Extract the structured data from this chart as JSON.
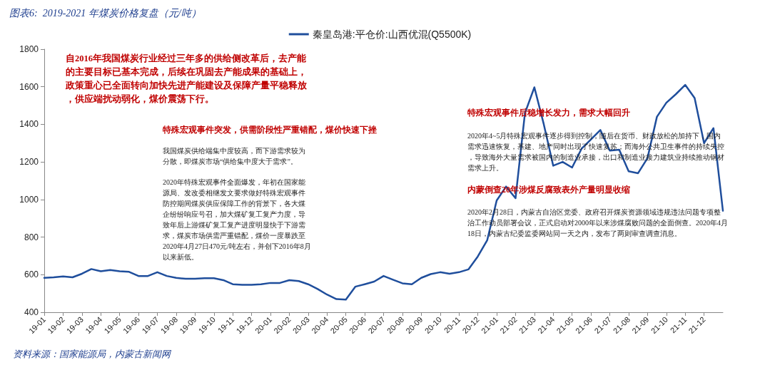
{
  "chart_data": {
    "type": "line",
    "title": "图表6:  2019-2021 年煤炭价格复盘（元/吨）",
    "categories": [
      "19-01",
      null,
      "19-02",
      null,
      "19-03",
      null,
      "19-04",
      null,
      "19-05",
      null,
      "19-06",
      null,
      "19-07",
      null,
      "19-08",
      null,
      "19-09",
      null,
      "19-10",
      null,
      "19-11",
      null,
      "19-12",
      null,
      "20-01",
      null,
      "20-02",
      null,
      "20-03",
      null,
      "20-04",
      null,
      "20-05",
      null,
      "20-06",
      null,
      "20-07",
      null,
      "20-08",
      null,
      "20-09",
      null,
      "20-10",
      null,
      "20-11",
      null,
      "20-12",
      null,
      "21-01",
      null,
      "21-02",
      null,
      "21-03",
      null,
      "21-04",
      null,
      "21-05",
      null,
      "21-06",
      null,
      "21-07",
      null,
      "21-08",
      null,
      "21-09",
      null,
      "21-10",
      null,
      "21-11",
      null,
      "21-12",
      null,
      null
    ],
    "series": [
      {
        "name": "秦皇岛港:平仓价:山西优混(Q5500K)",
        "color": "#1f4e9c",
        "values": [
          583,
          586,
          591,
          586,
          605,
          630,
          618,
          625,
          618,
          615,
          593,
          593,
          613,
          593,
          583,
          578,
          578,
          581,
          581,
          571,
          549,
          546,
          546,
          549,
          556,
          556,
          571,
          566,
          549,
          524,
          494,
          470,
          467,
          536,
          549,
          563,
          593,
          573,
          554,
          549,
          583,
          603,
          613,
          605,
          613,
          628,
          697,
          784,
          995,
          1069,
          1007,
          1460,
          1597,
          1400,
          1180,
          1200,
          1170,
          1270,
          1320,
          1370,
          1260,
          1265,
          1150,
          1140,
          1220,
          1440,
          1515,
          1560,
          1610,
          1540,
          1300,
          1380,
          940
        ]
      }
    ],
    "ylim": [
      400,
      1800
    ],
    "yticks": [
      400,
      600,
      800,
      1000,
      1200,
      1400,
      1600,
      1800
    ],
    "grid": false,
    "legend": "top",
    "marker": "none",
    "line_style": "solid",
    "annotations": [
      "自2016年我国煤炭行业经过三年多的供给侧改革后，去产能的主要目标已基本完成，后续在巩固去产能成果的基础上，政策重心已全面转向加快先进产能建设及保障产量平稳释放，供应端扰动弱化，煤价震荡下行。",
      "特殊宏观事件突发，供需阶段性严重错配，煤价快速下挫",
      "我国煤炭供给端集中度较高，而下游需求较为分散，即煤炭市场“供给集中度大于需求”。",
      "2020年特殊宏观事件全面爆发，年初在国家能源局、发改委相继发文要求做好特殊宏观事件防控期间煤炭供应保障工作的背景下，各大煤企纷纷响应号召，加大煤矿复工复产力度，导致年后上游煤矿复工复产进度明显快于下游需求，煤炭市场供需严重错配，煤价一度暴跌至2020年4月27日470元/吨左右，并创下2016年8月以来新低。",
      "特殊宏观事件后稳增长发力，需求大幅回升",
      "2020年4~5月特殊宏观事件逐步得到控制，随后在货币、财政放松的加持下，国内需求迅速恢复，基建、地产同时出现了快速复苏；而海外公共卫生事件的持续失控，导致海外大量需求被国内的制造业承接，出口和制造业接力建筑业持续推动钢材需求上升。",
      "内蒙倒查20年涉煤反腐致表外产量明显收缩",
      "2020年2月28日，内蒙古自治区党委、政府召开煤炭资源领域违规违法问题专项整治工作动员部署会议，正式启动对2000年以来涉煤腐败问题的全面倒查。2020年4月18日，内蒙古纪委监委网站同一天之内，发布了两则审查调查消息。",
      "资料来源：国家能源局，内蒙古新闻网"
    ]
  }
}
